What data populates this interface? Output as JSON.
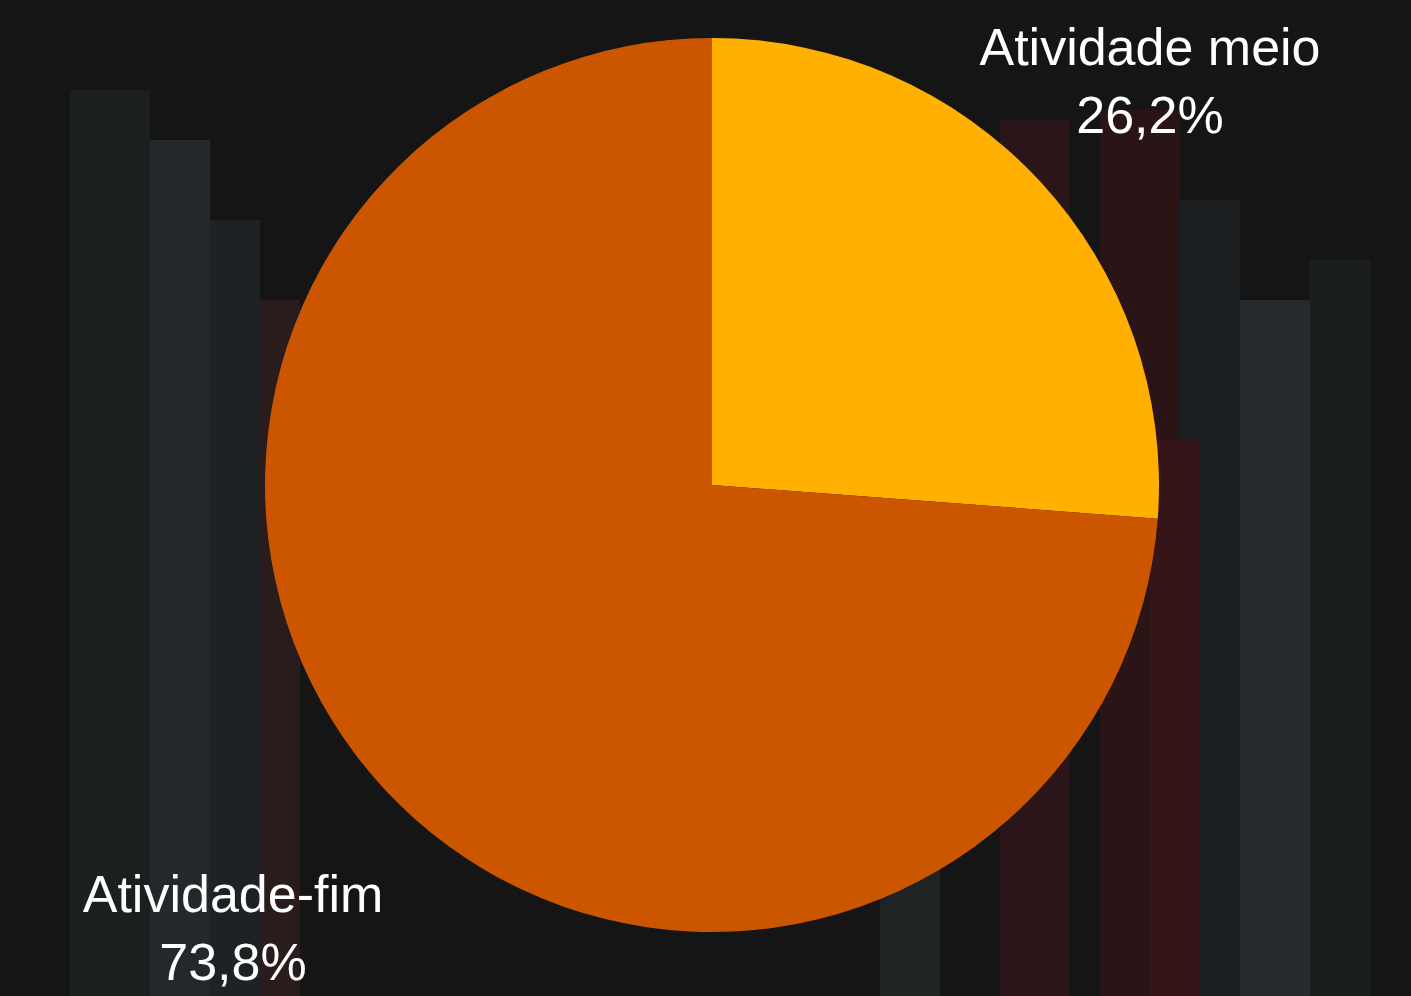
{
  "chart_data": {
    "type": "pie",
    "categories": [
      "Atividade meio",
      "Atividade-fim"
    ],
    "values": [
      26.2,
      73.8
    ],
    "value_labels": [
      "26,2%",
      "73,8%"
    ],
    "colors": [
      "#ffb000",
      "#cc5500"
    ],
    "data_labels": true
  }
}
